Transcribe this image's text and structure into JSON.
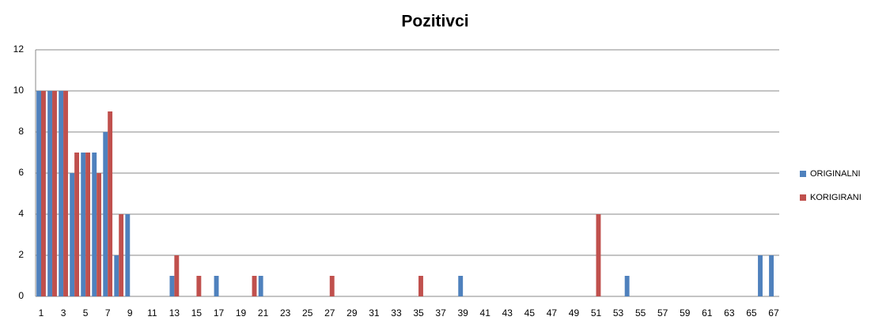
{
  "chart_data": {
    "type": "bar",
    "title": "Pozitivci",
    "categories": [
      1,
      null,
      3,
      null,
      5,
      null,
      7,
      null,
      9,
      null,
      11,
      null,
      13,
      null,
      15,
      null,
      17,
      null,
      19,
      null,
      21,
      null,
      23,
      null,
      25,
      null,
      27,
      null,
      29,
      null,
      31,
      null,
      33,
      null,
      35,
      null,
      37,
      null,
      39,
      null,
      41,
      null,
      43,
      null,
      45,
      null,
      47,
      null,
      49,
      null,
      51,
      null,
      53,
      null,
      55,
      null,
      57,
      null,
      59,
      null,
      61,
      null,
      63,
      null,
      65,
      null,
      67
    ],
    "series": [
      {
        "name": "ORIGINALNI",
        "color": "#4f81bd",
        "values": [
          10,
          10,
          10,
          6,
          7,
          7,
          8,
          2,
          4,
          0,
          0,
          0,
          1,
          0,
          0,
          0,
          1,
          0,
          0,
          0,
          1,
          0,
          0,
          0,
          0,
          0,
          0,
          0,
          0,
          0,
          0,
          0,
          0,
          0,
          0,
          0,
          0,
          0,
          1,
          0,
          0,
          0,
          0,
          0,
          0,
          0,
          0,
          0,
          0,
          0,
          0,
          0,
          0,
          1,
          0,
          0,
          0,
          0,
          0,
          0,
          0,
          0,
          0,
          0,
          0,
          2,
          2
        ]
      },
      {
        "name": "KORIGIRANI",
        "color": "#c0504d",
        "values": [
          10,
          10,
          10,
          7,
          7,
          6,
          9,
          4,
          0,
          0,
          0,
          0,
          2,
          0,
          1,
          0,
          0,
          0,
          0,
          1,
          0,
          0,
          0,
          0,
          0,
          0,
          1,
          0,
          0,
          0,
          0,
          0,
          0,
          0,
          1,
          0,
          0,
          0,
          0,
          0,
          0,
          0,
          0,
          0,
          0,
          0,
          0,
          0,
          0,
          0,
          4,
          0,
          0,
          0,
          0,
          0,
          0,
          0,
          0,
          0,
          0,
          0,
          0,
          0,
          0,
          0,
          0
        ]
      }
    ],
    "ylim": [
      0,
      12
    ],
    "yticks": [
      0,
      2,
      4,
      6,
      8,
      10,
      12
    ],
    "grid": true,
    "legend": "right"
  }
}
